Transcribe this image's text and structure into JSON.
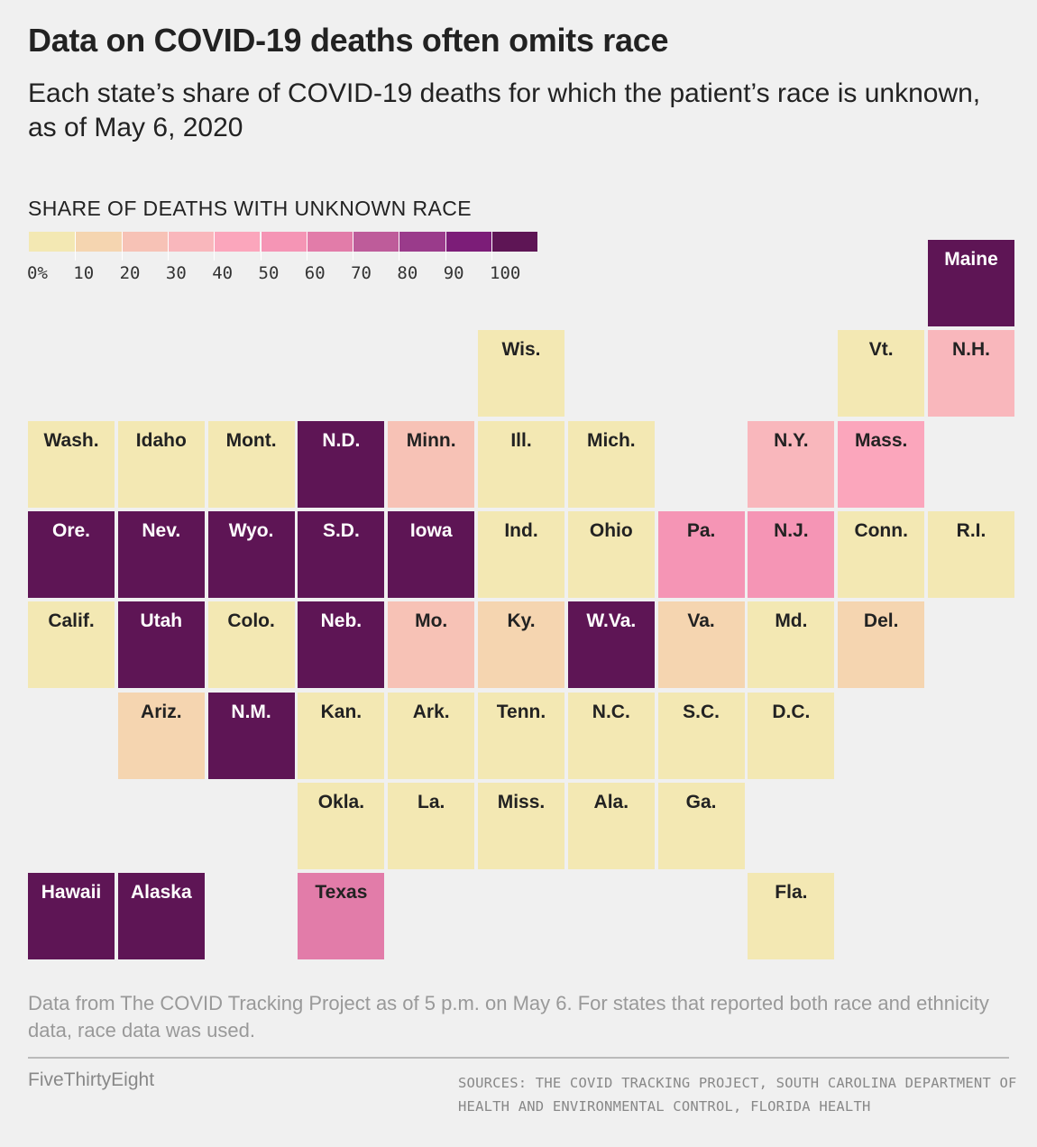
{
  "title": "Data on COVID-19 deaths often omits race",
  "subtitle": "Each state’s share of COVID-19 deaths for which the patient’s race is unknown, as of May 6, 2020",
  "legend": {
    "title": "SHARE OF DEATHS WITH UNKNOWN RACE",
    "labels": [
      "0%",
      "10",
      "20",
      "30",
      "40",
      "50",
      "60",
      "70",
      "80",
      "90",
      "100"
    ],
    "colors": [
      "#f3e8b3",
      "#f5d5b0",
      "#f7c2b6",
      "#f9b7bc",
      "#fba6bc",
      "#f595b5",
      "#e27ca9",
      "#be5c9a",
      "#9a3b8b",
      "#7c1d78",
      "#5e1555"
    ]
  },
  "chart_data": {
    "type": "tile-map",
    "value_label": "Share of deaths with unknown race (%)",
    "range": [
      0,
      100
    ],
    "states": [
      {
        "name": "Maine",
        "value": 100
      },
      {
        "name": "Wis.",
        "value": 0
      },
      {
        "name": "Vt.",
        "value": 0
      },
      {
        "name": "N.H.",
        "value": 30
      },
      {
        "name": "Wash.",
        "value": 0
      },
      {
        "name": "Idaho",
        "value": 0
      },
      {
        "name": "Mont.",
        "value": 0
      },
      {
        "name": "N.D.",
        "value": 100
      },
      {
        "name": "Minn.",
        "value": 20
      },
      {
        "name": "Ill.",
        "value": 0
      },
      {
        "name": "Mich.",
        "value": 0
      },
      {
        "name": "N.Y.",
        "value": 25
      },
      {
        "name": "Mass.",
        "value": 40
      },
      {
        "name": "Ore.",
        "value": 100
      },
      {
        "name": "Nev.",
        "value": 100
      },
      {
        "name": "Wyo.",
        "value": 100
      },
      {
        "name": "S.D.",
        "value": 100
      },
      {
        "name": "Iowa",
        "value": 100
      },
      {
        "name": "Ind.",
        "value": 0
      },
      {
        "name": "Ohio",
        "value": 0
      },
      {
        "name": "Pa.",
        "value": 50
      },
      {
        "name": "N.J.",
        "value": 50
      },
      {
        "name": "Conn.",
        "value": 0
      },
      {
        "name": "R.I.",
        "value": 0
      },
      {
        "name": "Calif.",
        "value": 0
      },
      {
        "name": "Utah",
        "value": 100
      },
      {
        "name": "Colo.",
        "value": 0
      },
      {
        "name": "Neb.",
        "value": 100
      },
      {
        "name": "Mo.",
        "value": 20
      },
      {
        "name": "Ky.",
        "value": 10
      },
      {
        "name": "W.Va.",
        "value": 100
      },
      {
        "name": "Va.",
        "value": 10
      },
      {
        "name": "Md.",
        "value": 0
      },
      {
        "name": "Del.",
        "value": 10
      },
      {
        "name": "Ariz.",
        "value": 10
      },
      {
        "name": "N.M.",
        "value": 100
      },
      {
        "name": "Kan.",
        "value": 0
      },
      {
        "name": "Ark.",
        "value": 0
      },
      {
        "name": "Tenn.",
        "value": 0
      },
      {
        "name": "N.C.",
        "value": 0
      },
      {
        "name": "S.C.",
        "value": 0
      },
      {
        "name": "D.C.",
        "value": 0
      },
      {
        "name": "Okla.",
        "value": 0
      },
      {
        "name": "La.",
        "value": 0
      },
      {
        "name": "Miss.",
        "value": 0
      },
      {
        "name": "Ala.",
        "value": 0
      },
      {
        "name": "Ga.",
        "value": 0
      },
      {
        "name": "Hawaii",
        "value": 100
      },
      {
        "name": "Alaska",
        "value": 100
      },
      {
        "name": "Texas",
        "value": 60
      },
      {
        "name": "Fla.",
        "value": 0
      }
    ]
  },
  "note": "Data from The COVID Tracking Project as of 5 p.m. on May 6. For states that reported both race and ethnicity data, race data was used.",
  "brand": "FiveThirtyEight",
  "sources": "SOURCES: THE COVID TRACKING PROJECT, SOUTH CAROLINA DEPARTMENT OF HEALTH AND ENVIRONMENTAL CONTROL, FLORIDA HEALTH"
}
